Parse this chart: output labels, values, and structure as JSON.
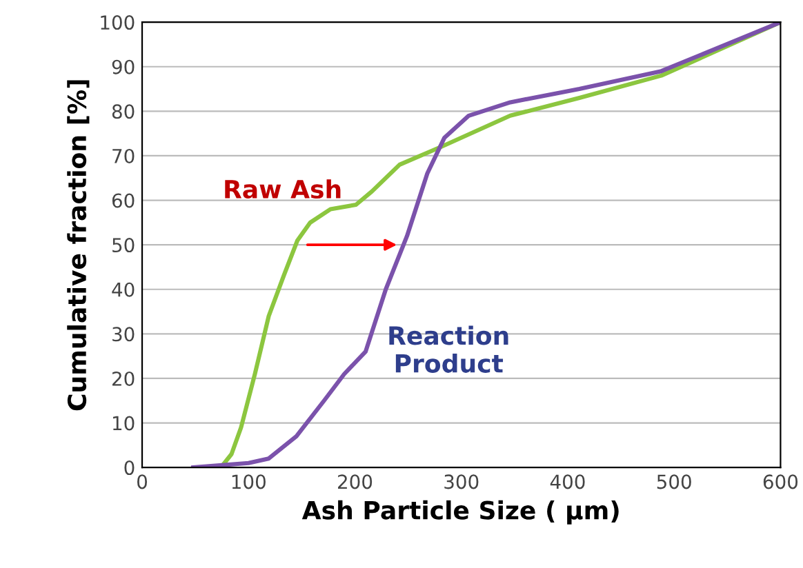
{
  "chart_data": {
    "type": "line",
    "xlabel": "Ash Particle Size ( μm)",
    "ylabel": "Cumulative fraction [%]",
    "xlim": [
      0,
      600
    ],
    "ylim": [
      0,
      100
    ],
    "xticks": [
      0,
      100,
      200,
      300,
      400,
      500,
      600
    ],
    "yticks": [
      0,
      10,
      20,
      30,
      40,
      50,
      60,
      70,
      80,
      90,
      100
    ],
    "grid": "y",
    "legend": false,
    "marker": "none",
    "line_style": "solid",
    "series": [
      {
        "color": "#8cc63f",
        "x": [
          74,
          84,
          93,
          106,
          119,
          133,
          146,
          158,
          177,
          201,
          216,
          242,
          281,
          346,
          411,
          488,
          600
        ],
        "values": [
          0,
          3,
          9,
          21,
          34,
          43,
          51,
          55,
          58,
          59,
          62,
          68,
          72,
          79,
          83,
          88,
          100
        ]
      },
      {
        "color": "#7b52ab",
        "x": [
          48,
          100,
          119,
          145,
          171,
          190,
          210,
          229,
          249,
          268,
          284,
          307,
          346,
          411,
          488,
          600
        ],
        "values": [
          0,
          1,
          2,
          7,
          15,
          21,
          26,
          40,
          52,
          66,
          74,
          79,
          82,
          85,
          89,
          100
        ]
      }
    ],
    "annotations": [
      "Raw Ash",
      "Reaction\nProduct"
    ]
  }
}
